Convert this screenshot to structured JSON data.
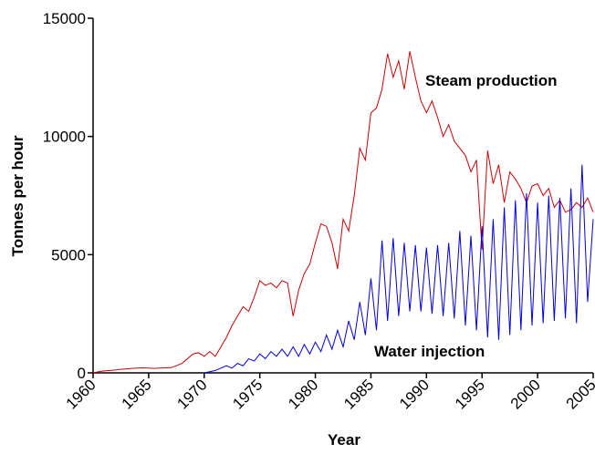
{
  "chart_data": {
    "type": "line",
    "x_label": "Year",
    "y_label": "Tonnes per hour",
    "annotations": [
      "Steam production",
      "Water injection"
    ],
    "x": [
      1960,
      1960.5,
      1961,
      1961.5,
      1962,
      1962.5,
      1963,
      1963.5,
      1964,
      1964.5,
      1965,
      1965.5,
      1966,
      1966.5,
      1967,
      1967.5,
      1968,
      1968.5,
      1969,
      1969.5,
      1970,
      1970.5,
      1971,
      1971.5,
      1972,
      1972.5,
      1973,
      1973.5,
      1974,
      1974.5,
      1975,
      1975.5,
      1976,
      1976.5,
      1977,
      1977.5,
      1978,
      1978.5,
      1979,
      1979.5,
      1980,
      1980.5,
      1981,
      1981.5,
      1982,
      1982.5,
      1983,
      1983.5,
      1984,
      1984.5,
      1985,
      1985.5,
      1986,
      1986.5,
      1987,
      1987.5,
      1988,
      1988.5,
      1989,
      1989.5,
      1990,
      1990.5,
      1991,
      1991.5,
      1992,
      1992.5,
      1993,
      1993.5,
      1994,
      1994.5,
      1995,
      1995.5,
      1996,
      1996.5,
      1997,
      1997.5,
      1998,
      1998.5,
      1999,
      1999.5,
      2000,
      2000.5,
      2001,
      2001.5,
      2002,
      2002.5,
      2003,
      2003.5,
      2004,
      2004.5,
      2005
    ],
    "series": [
      {
        "color": "#cc0000",
        "values": [
          0,
          50,
          80,
          100,
          120,
          150,
          170,
          190,
          200,
          210,
          200,
          190,
          200,
          210,
          220,
          300,
          400,
          600,
          800,
          850,
          700,
          900,
          700,
          1100,
          1500,
          2000,
          2400,
          2800,
          2600,
          3200,
          3900,
          3700,
          3800,
          3600,
          3900,
          3800,
          2400,
          3500,
          4200,
          4600,
          5500,
          6300,
          6200,
          5500,
          4400,
          6500,
          6000,
          7500,
          9500,
          9000,
          11000,
          11200,
          12000,
          13500,
          12500,
          13200,
          12000,
          13600,
          12500,
          11500,
          11000,
          11500,
          10800,
          10000,
          10500,
          9800,
          9500,
          9200,
          8500,
          9000,
          5200,
          9400,
          8000,
          8800,
          7200,
          8500,
          8200,
          7800,
          7200,
          7900,
          8000,
          7500,
          7800,
          7000,
          7300,
          6800,
          6900,
          7200,
          7000,
          7400,
          6800
        ]
      },
      {
        "color": "#0000dd",
        "values": [
          null,
          null,
          null,
          null,
          null,
          null,
          null,
          null,
          null,
          null,
          null,
          null,
          null,
          null,
          null,
          null,
          null,
          null,
          null,
          null,
          0,
          50,
          100,
          200,
          300,
          200,
          400,
          300,
          600,
          500,
          800,
          600,
          900,
          700,
          1000,
          700,
          1100,
          700,
          1200,
          800,
          1300,
          900,
          1600,
          1000,
          1800,
          1100,
          2200,
          1400,
          3000,
          1600,
          4000,
          1800,
          5600,
          2200,
          5700,
          2400,
          5500,
          2600,
          5400,
          2600,
          5300,
          2500,
          5400,
          2400,
          5500,
          2300,
          6000,
          2000,
          5800,
          1800,
          6200,
          1500,
          6500,
          1400,
          7000,
          1600,
          7300,
          1800,
          7600,
          2000,
          7200,
          2100,
          7500,
          2200,
          7400,
          2300,
          7800,
          2100,
          8800,
          3000,
          6500
        ]
      }
    ],
    "xlim": [
      1960,
      2005
    ],
    "xticks": [
      1960,
      1965,
      1970,
      1975,
      1980,
      1985,
      1990,
      1995,
      2000,
      2005
    ],
    "ylim": [
      0,
      15000
    ],
    "yticks": [
      0,
      5000,
      10000,
      15000
    ]
  }
}
